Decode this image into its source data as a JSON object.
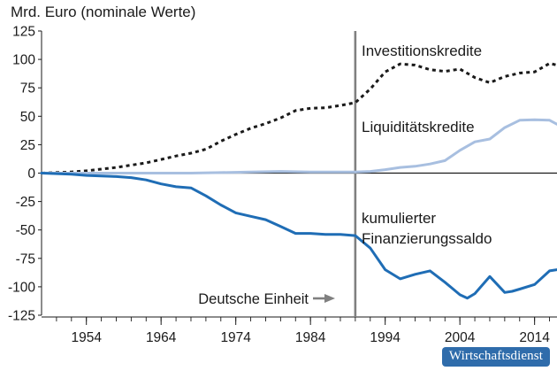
{
  "source_badge": "Wirtschaftsdienst",
  "chart_data": {
    "type": "line",
    "title": "Mrd. Euro (nominale Werte)",
    "xlabel": "",
    "ylabel": "",
    "xlim": [
      1948,
      2017
    ],
    "ylim": [
      -125,
      125
    ],
    "x_ticks": [
      1954,
      1964,
      1974,
      1984,
      1994,
      2004,
      2014
    ],
    "y_ticks": [
      -125,
      -100,
      -75,
      -50,
      -25,
      0,
      25,
      50,
      75,
      100,
      125
    ],
    "grid": false,
    "colors": {
      "Investitionskredite": "#1a1a1a",
      "Liquiditätskredite": "#a8bfe0",
      "kumulierter Finanzierungssaldo": "#1f6db5",
      "vertical_marker": "#808080"
    },
    "series": [
      {
        "name": "Investitionskredite",
        "style": "dotted",
        "x": [
          1948,
          1950,
          1952,
          1954,
          1956,
          1958,
          1960,
          1962,
          1964,
          1966,
          1968,
          1970,
          1972,
          1974,
          1976,
          1978,
          1980,
          1982,
          1984,
          1986,
          1988,
          1990,
          1992,
          1994,
          1996,
          1998,
          2000,
          2002,
          2004,
          2006,
          2008,
          2010,
          2012,
          2014,
          2016,
          2017
        ],
        "values": [
          0,
          0.5,
          1,
          2,
          3.5,
          5,
          7,
          9,
          12,
          15,
          17.5,
          21,
          28,
          34,
          39.5,
          43.5,
          48.5,
          55,
          57,
          57.5,
          59.5,
          62,
          74,
          89,
          96,
          95,
          91,
          89.5,
          91.5,
          84,
          79.5,
          85,
          88,
          89,
          96.5,
          95
        ]
      },
      {
        "name": "Liquiditätskredite",
        "style": "solid",
        "x": [
          1948,
          1952,
          1956,
          1960,
          1964,
          1968,
          1972,
          1976,
          1980,
          1984,
          1988,
          1990,
          1992,
          1994,
          1996,
          1998,
          2000,
          2002,
          2004,
          2006,
          2008,
          2010,
          2012,
          2014,
          2016,
          2017
        ],
        "values": [
          0,
          0,
          0,
          0,
          0,
          0,
          0.5,
          1,
          1.5,
          1,
          1,
          1,
          1.5,
          3,
          5,
          6,
          8,
          11,
          20,
          27.5,
          30,
          40,
          46.5,
          47,
          46.5,
          43
        ]
      },
      {
        "name": "kumulierter Finanzierungssaldo",
        "style": "solid",
        "x": [
          1948,
          1950,
          1952,
          1954,
          1956,
          1958,
          1960,
          1962,
          1964,
          1966,
          1968,
          1970,
          1972,
          1974,
          1976,
          1978,
          1980,
          1982,
          1984,
          1986,
          1988,
          1990,
          1992,
          1994,
          1996,
          1998,
          2000,
          2002,
          2004,
          2005,
          2006,
          2008,
          2010,
          2011,
          2012,
          2014,
          2016,
          2017
        ],
        "values": [
          0,
          -0.5,
          -1,
          -2,
          -2.5,
          -3,
          -4,
          -6,
          -9.5,
          -12,
          -13,
          -20,
          -28,
          -35,
          -38,
          -41,
          -47,
          -53,
          -53,
          -54,
          -54,
          -55,
          -66,
          -85,
          -93,
          -89,
          -86,
          -96,
          -107,
          -110,
          -106,
          -91,
          -105,
          -104,
          -102,
          -98,
          -86,
          -85
        ]
      }
    ],
    "series_labels": [
      {
        "series": "Investitionskredite",
        "text": "Investitionskredite"
      },
      {
        "series": "Liquiditätskredite",
        "text": "Liquiditätskredite"
      },
      {
        "series": "kumulierter Finanzierungssaldo",
        "text": "kumulierter"
      },
      {
        "series": "kumulierter Finanzierungssaldo",
        "text": "Finanzierungssaldo"
      }
    ],
    "vertical_marker": {
      "x": 1990,
      "label": "Deutsche Einheit",
      "arrow": "→"
    }
  }
}
